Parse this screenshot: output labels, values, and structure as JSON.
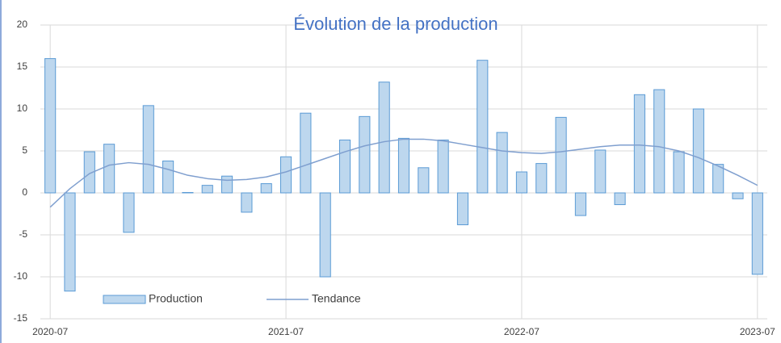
{
  "chart_data": {
    "type": "bar",
    "title": "Évolution de la production",
    "categories": [
      "2020-07",
      null,
      null,
      null,
      null,
      null,
      null,
      null,
      null,
      null,
      null,
      null,
      "2021-07",
      null,
      null,
      null,
      null,
      null,
      null,
      null,
      null,
      null,
      null,
      null,
      "2022-07",
      null,
      null,
      null,
      null,
      null,
      null,
      null,
      null,
      null,
      null,
      null,
      "2023-07"
    ],
    "series": [
      {
        "name": "Production",
        "type": "bar",
        "color": "#bdd7ee",
        "values": [
          16,
          -11.7,
          4.9,
          5.8,
          -4.7,
          10.4,
          3.8,
          0.05,
          0.9,
          2.0,
          -2.3,
          1.1,
          4.3,
          9.5,
          -10,
          6.3,
          9.1,
          13.2,
          6.5,
          3.0,
          6.3,
          -3.8,
          15.8,
          7.2,
          2.5,
          3.5,
          9.0,
          -2.7,
          5.1,
          -1.4,
          11.7,
          12.3,
          4.9,
          10.0,
          3.4,
          -0.7,
          -9.7
        ]
      },
      {
        "name": "Tendance",
        "type": "line",
        "color": "#7f9fcf",
        "values": [
          -1.7,
          0.5,
          2.3,
          3.3,
          3.6,
          3.4,
          2.8,
          2.1,
          1.7,
          1.5,
          1.6,
          1.9,
          2.5,
          3.3,
          4.1,
          4.9,
          5.6,
          6.1,
          6.4,
          6.4,
          6.2,
          5.8,
          5.4,
          5.0,
          4.8,
          4.7,
          4.9,
          5.2,
          5.5,
          5.7,
          5.7,
          5.5,
          5.0,
          4.2,
          3.2,
          2.1,
          0.9
        ]
      }
    ],
    "ylim": [
      -15,
      20
    ],
    "yticks": [
      -15,
      -10,
      -5,
      0,
      5,
      10,
      15,
      20
    ],
    "grid": true,
    "legend": "bottom-left"
  }
}
